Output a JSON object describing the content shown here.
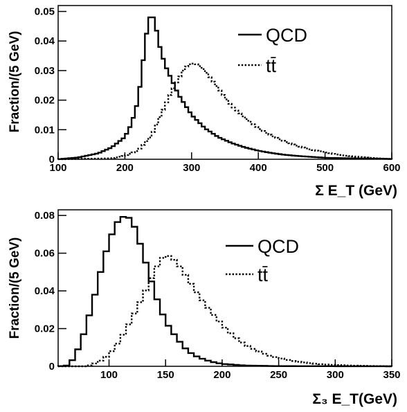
{
  "chart_data": [
    {
      "type": "line",
      "ylabel": "Fraction/(5 GeV)",
      "xlabel": "Σ E_T (GeV)",
      "xlim": [
        100,
        600
      ],
      "ylim": [
        0,
        0.052
      ],
      "xticks": [
        100,
        200,
        300,
        400,
        500,
        600
      ],
      "yticks": [
        0,
        0.01,
        0.02,
        0.03,
        0.04,
        0.05
      ],
      "ytick_labels": [
        "0",
        "0.01",
        "0.02",
        "0.03",
        "0.04",
        "0.05"
      ],
      "legend_position": "top-right",
      "grid": false,
      "series": [
        {
          "name": "QCD",
          "style": "solid",
          "points": [
            [
              100,
              0.0
            ],
            [
              130,
              0.0006
            ],
            [
              160,
              0.002
            ],
            [
              180,
              0.004
            ],
            [
              200,
              0.0075
            ],
            [
              210,
              0.012
            ],
            [
              220,
              0.02
            ],
            [
              230,
              0.038
            ],
            [
              235,
              0.047
            ],
            [
              240,
              0.049
            ],
            [
              245,
              0.047
            ],
            [
              250,
              0.04
            ],
            [
              260,
              0.032
            ],
            [
              270,
              0.027
            ],
            [
              280,
              0.022
            ],
            [
              290,
              0.0185
            ],
            [
              300,
              0.015
            ],
            [
              320,
              0.0105
            ],
            [
              340,
              0.0075
            ],
            [
              360,
              0.0055
            ],
            [
              380,
              0.004
            ],
            [
              400,
              0.0029
            ],
            [
              420,
              0.0021
            ],
            [
              440,
              0.0015
            ],
            [
              460,
              0.0011
            ],
            [
              480,
              0.0008
            ],
            [
              500,
              0.0005
            ],
            [
              540,
              0.0003
            ],
            [
              580,
              0.0002
            ],
            [
              600,
              0.0001
            ]
          ]
        },
        {
          "name": "tt̄",
          "style": "dotted",
          "points": [
            [
              100,
              0.0
            ],
            [
              180,
              0.0003
            ],
            [
              200,
              0.0012
            ],
            [
              220,
              0.003
            ],
            [
              240,
              0.008
            ],
            [
              250,
              0.013
            ],
            [
              260,
              0.018
            ],
            [
              270,
              0.023
            ],
            [
              280,
              0.027
            ],
            [
              290,
              0.031
            ],
            [
              300,
              0.0325
            ],
            [
              310,
              0.032
            ],
            [
              320,
              0.03
            ],
            [
              330,
              0.027
            ],
            [
              340,
              0.024
            ],
            [
              350,
              0.021
            ],
            [
              360,
              0.018
            ],
            [
              380,
              0.014
            ],
            [
              400,
              0.0105
            ],
            [
              420,
              0.008
            ],
            [
              440,
              0.006
            ],
            [
              460,
              0.0044
            ],
            [
              480,
              0.0032
            ],
            [
              500,
              0.0024
            ],
            [
              520,
              0.0015
            ],
            [
              540,
              0.001
            ],
            [
              560,
              0.0006
            ],
            [
              580,
              0.0003
            ],
            [
              600,
              0.0001
            ]
          ]
        }
      ]
    },
    {
      "type": "line",
      "ylabel": "Fraction/(5 GeV)",
      "xlabel": "Σ₃ E_T(GeV)",
      "xlim": [
        55,
        350
      ],
      "ylim": [
        0,
        0.083
      ],
      "xticks": [
        100,
        150,
        200,
        250,
        300,
        350
      ],
      "yticks": [
        0,
        0.02,
        0.04,
        0.06,
        0.08
      ],
      "ytick_labels": [
        "0",
        "0.02",
        "0.04",
        "0.06",
        "0.08"
      ],
      "legend_position": "top-right",
      "grid": false,
      "series": [
        {
          "name": "QCD",
          "style": "solid",
          "points": [
            [
              55,
              0.0
            ],
            [
              65,
              0.0005
            ],
            [
              70,
              0.006
            ],
            [
              75,
              0.012
            ],
            [
              80,
              0.022
            ],
            [
              85,
              0.032
            ],
            [
              90,
              0.044
            ],
            [
              95,
              0.056
            ],
            [
              100,
              0.066
            ],
            [
              105,
              0.074
            ],
            [
              110,
              0.079
            ],
            [
              115,
              0.0795
            ],
            [
              120,
              0.078
            ],
            [
              125,
              0.07
            ],
            [
              130,
              0.06
            ],
            [
              135,
              0.05
            ],
            [
              140,
              0.04
            ],
            [
              145,
              0.031
            ],
            [
              150,
              0.024
            ],
            [
              155,
              0.019
            ],
            [
              160,
              0.015
            ],
            [
              165,
              0.011
            ],
            [
              170,
              0.008
            ],
            [
              175,
              0.006
            ],
            [
              180,
              0.0045
            ],
            [
              190,
              0.0025
            ],
            [
              200,
              0.0013
            ],
            [
              220,
              0.0004
            ],
            [
              250,
              0.0001
            ],
            [
              350,
              0.0
            ]
          ]
        },
        {
          "name": "tt̄",
          "style": "dotted",
          "points": [
            [
              55,
              0.0
            ],
            [
              80,
              0.0
            ],
            [
              90,
              0.002
            ],
            [
              100,
              0.006
            ],
            [
              110,
              0.014
            ],
            [
              120,
              0.025
            ],
            [
              130,
              0.037
            ],
            [
              140,
              0.05
            ],
            [
              145,
              0.056
            ],
            [
              150,
              0.059
            ],
            [
              155,
              0.058
            ],
            [
              160,
              0.055
            ],
            [
              165,
              0.051
            ],
            [
              170,
              0.046
            ],
            [
              180,
              0.037
            ],
            [
              190,
              0.029
            ],
            [
              200,
              0.022
            ],
            [
              210,
              0.016
            ],
            [
              220,
              0.0115
            ],
            [
              230,
              0.0085
            ],
            [
              240,
              0.006
            ],
            [
              250,
              0.0045
            ],
            [
              260,
              0.003
            ],
            [
              270,
              0.0022
            ],
            [
              280,
              0.0015
            ],
            [
              290,
              0.001
            ],
            [
              300,
              0.0007
            ],
            [
              320,
              0.0003
            ],
            [
              340,
              0.0001
            ],
            [
              350,
              0.0
            ]
          ]
        }
      ]
    }
  ]
}
